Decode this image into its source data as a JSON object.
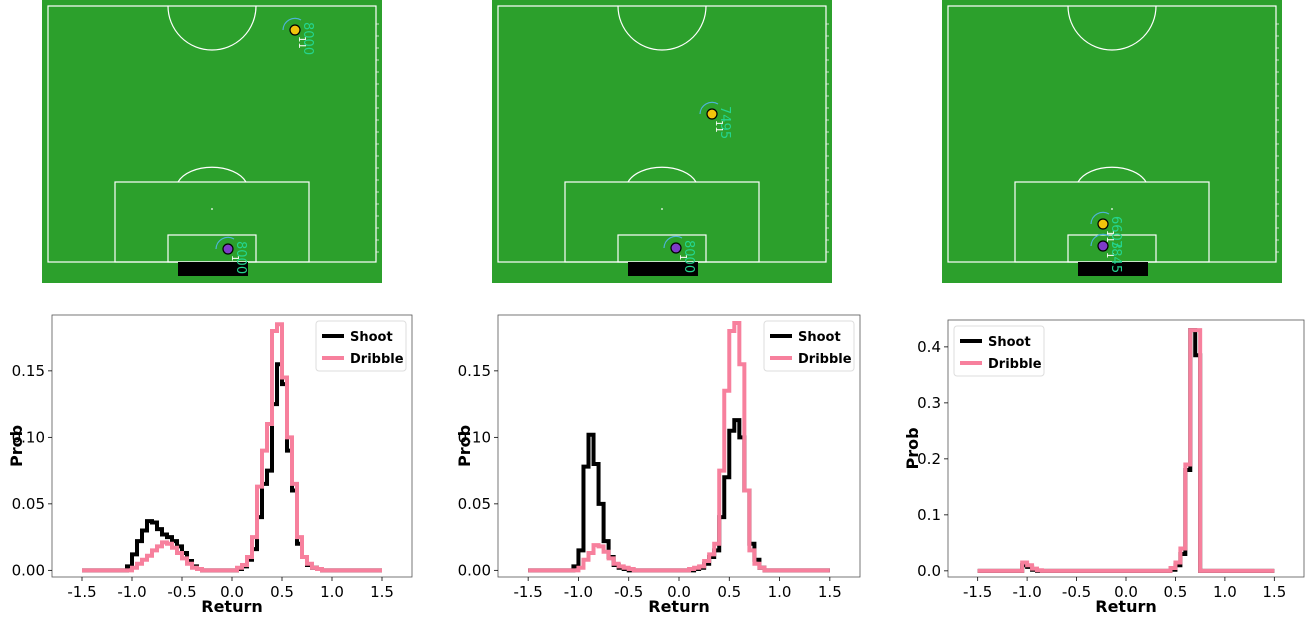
{
  "colors": {
    "pitch": "#2ca02c",
    "lines": "#ffffff",
    "annotation": "#25d58f",
    "shoot": "#000000",
    "dribble": "#f7809d"
  },
  "pitches": [
    {
      "players": [
        {
          "team": "yellow",
          "number": "11",
          "value": "8000"
        },
        {
          "team": "purple",
          "number": "1",
          "value": "8000"
        }
      ]
    },
    {
      "players": [
        {
          "team": "yellow",
          "number": "11",
          "value": "7495"
        },
        {
          "team": "purple",
          "number": "1",
          "value": "8000"
        }
      ]
    },
    {
      "players": [
        {
          "team": "yellow",
          "number": "11",
          "value": "6603"
        },
        {
          "team": "purple",
          "number": "1",
          "value": "7845"
        }
      ]
    }
  ],
  "chart_data": [
    {
      "type": "line",
      "xlabel": "Return",
      "ylabel": "Prob",
      "xlim": [
        -1.5,
        1.5
      ],
      "ylim": [
        -0.005,
        0.192
      ],
      "xticks": [
        "-1.5",
        "-1.0",
        "-0.5",
        "0.0",
        "0.5",
        "1.0",
        "1.5"
      ],
      "yticks": [
        "0.00",
        "0.05",
        "0.10",
        "0.15"
      ],
      "ytick_values": [
        0,
        0.05,
        0.1,
        0.15
      ],
      "legend": "top-right",
      "bin_edges_range": [
        -1.5,
        1.5
      ],
      "bin_width": 0.05,
      "series": [
        {
          "name": "Shoot",
          "color": "#000000",
          "values": [
            0,
            0,
            0,
            0,
            0,
            0,
            0,
            0,
            0,
            0.003,
            0.012,
            0.022,
            0.03,
            0.037,
            0.036,
            0.031,
            0.027,
            0.025,
            0.022,
            0.018,
            0.013,
            0.007,
            0.003,
            0.001,
            0,
            0,
            0,
            0,
            0,
            0,
            0,
            0.001,
            0.003,
            0.008,
            0.016,
            0.04,
            0.065,
            0.075,
            0.125,
            0.155,
            0.14,
            0.09,
            0.06,
            0.02,
            0.01,
            0.004,
            0.002,
            0.001,
            0,
            0,
            0,
            0,
            0,
            0,
            0,
            0,
            0,
            0,
            0,
            0
          ]
        },
        {
          "name": "Dribble",
          "color": "#f7809d",
          "values": [
            0,
            0,
            0,
            0,
            0,
            0,
            0,
            0,
            0,
            0,
            0.002,
            0.005,
            0.008,
            0.011,
            0.015,
            0.018,
            0.021,
            0.02,
            0.017,
            0.013,
            0.009,
            0.005,
            0.002,
            0.001,
            0,
            0,
            0,
            0,
            0,
            0,
            0,
            0.002,
            0.004,
            0.01,
            0.025,
            0.063,
            0.09,
            0.11,
            0.18,
            0.185,
            0.145,
            0.1,
            0.065,
            0.025,
            0.01,
            0.005,
            0.002,
            0.001,
            0,
            0,
            0,
            0,
            0,
            0,
            0,
            0,
            0,
            0,
            0,
            0
          ]
        }
      ]
    },
    {
      "type": "line",
      "xlabel": "Return",
      "ylabel": "Prob",
      "xlim": [
        -1.5,
        1.5
      ],
      "ylim": [
        -0.005,
        0.192
      ],
      "xticks": [
        "-1.5",
        "-1.0",
        "-0.5",
        "0.0",
        "0.5",
        "1.0",
        "1.5"
      ],
      "yticks": [
        "0.00",
        "0.05",
        "0.10",
        "0.15"
      ],
      "ytick_values": [
        0,
        0.05,
        0.1,
        0.15
      ],
      "legend": "top-right",
      "bin_edges_range": [
        -1.5,
        1.5
      ],
      "bin_width": 0.05,
      "series": [
        {
          "name": "Shoot",
          "color": "#000000",
          "values": [
            0,
            0,
            0,
            0,
            0,
            0,
            0,
            0,
            0,
            0.003,
            0.015,
            0.078,
            0.102,
            0.08,
            0.05,
            0.022,
            0.01,
            0.004,
            0.002,
            0.001,
            0,
            0,
            0,
            0,
            0,
            0,
            0,
            0,
            0,
            0,
            0,
            0,
            0,
            0.001,
            0.002,
            0.005,
            0.01,
            0.015,
            0.04,
            0.07,
            0.105,
            0.113,
            0.1,
            0.06,
            0.02,
            0.008,
            0.002,
            0,
            0,
            0,
            0,
            0,
            0,
            0,
            0,
            0,
            0,
            0,
            0,
            0
          ]
        },
        {
          "name": "Dribble",
          "color": "#f7809d",
          "values": [
            0,
            0,
            0,
            0,
            0,
            0,
            0,
            0,
            0,
            0,
            0.002,
            0.008,
            0.013,
            0.019,
            0.018,
            0.014,
            0.009,
            0.005,
            0.003,
            0.002,
            0.001,
            0,
            0,
            0,
            0,
            0,
            0,
            0,
            0,
            0,
            0,
            0,
            0.001,
            0.002,
            0.003,
            0.007,
            0.012,
            0.02,
            0.075,
            0.135,
            0.18,
            0.186,
            0.155,
            0.06,
            0.015,
            0.005,
            0.002,
            0,
            0,
            0,
            0,
            0,
            0,
            0,
            0,
            0,
            0,
            0,
            0,
            0
          ]
        }
      ]
    },
    {
      "type": "line",
      "xlabel": "Return",
      "ylabel": "Prob",
      "xlim": [
        -1.5,
        1.5
      ],
      "ylim": [
        -0.011,
        0.448
      ],
      "xticks": [
        "-1.5",
        "-1.0",
        "-0.5",
        "0.0",
        "0.5",
        "1.0",
        "1.5"
      ],
      "yticks": [
        "0.0",
        "0.1",
        "0.2",
        "0.3",
        "0.4"
      ],
      "ytick_values": [
        0,
        0.1,
        0.2,
        0.3,
        0.4
      ],
      "legend": "top-left",
      "bin_edges_range": [
        -1.5,
        1.5
      ],
      "bin_width": 0.05,
      "series": [
        {
          "name": "Shoot",
          "color": "#000000",
          "values": [
            0,
            0,
            0,
            0,
            0,
            0,
            0,
            0,
            0,
            0.01,
            0.007,
            0.002,
            0,
            0,
            0,
            0,
            0,
            0,
            0,
            0,
            0,
            0,
            0,
            0,
            0,
            0,
            0,
            0,
            0,
            0,
            0,
            0,
            0,
            0,
            0,
            0,
            0,
            0,
            0,
            0.002,
            0.01,
            0.03,
            0.18,
            0.43,
            0.385,
            0,
            0,
            0,
            0,
            0,
            0,
            0,
            0,
            0,
            0,
            0,
            0,
            0,
            0,
            0
          ]
        },
        {
          "name": "Dribble",
          "color": "#f7809d",
          "values": [
            0,
            0,
            0,
            0,
            0,
            0,
            0,
            0,
            0,
            0.015,
            0.01,
            0.004,
            0.001,
            0,
            0,
            0,
            0,
            0,
            0,
            0,
            0,
            0,
            0,
            0,
            0,
            0,
            0,
            0,
            0,
            0,
            0,
            0,
            0,
            0,
            0,
            0,
            0,
            0,
            0,
            0.005,
            0.015,
            0.04,
            0.19,
            0.43,
            0.43,
            0,
            0,
            0,
            0,
            0,
            0,
            0,
            0,
            0,
            0,
            0,
            0,
            0,
            0,
            0
          ]
        }
      ]
    }
  ]
}
